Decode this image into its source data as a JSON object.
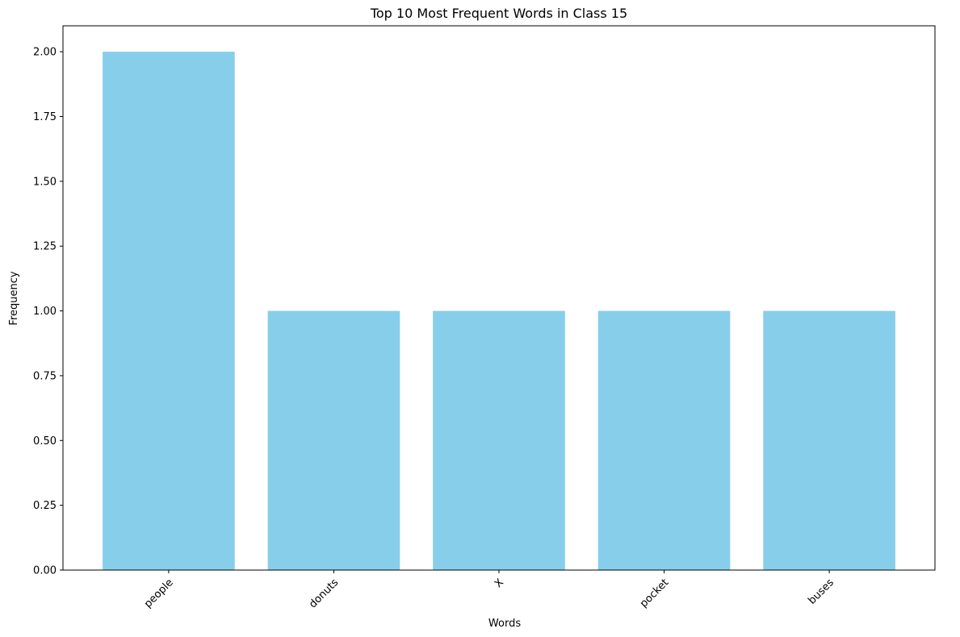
{
  "chart_data": {
    "type": "bar",
    "title": "Top 10 Most Frequent Words in Class 15",
    "xlabel": "Words",
    "ylabel": "Frequency",
    "categories": [
      "people",
      "donuts",
      "X",
      "pocket",
      "buses"
    ],
    "values": [
      2,
      1,
      1,
      1,
      1
    ],
    "ylim": [
      0,
      2.1
    ],
    "yticks": [
      "0.00",
      "0.25",
      "0.50",
      "0.75",
      "1.00",
      "1.25",
      "1.50",
      "1.75",
      "2.00"
    ],
    "bar_color": "#87CEEB",
    "grid": false,
    "xtick_rotation_deg": 45
  }
}
